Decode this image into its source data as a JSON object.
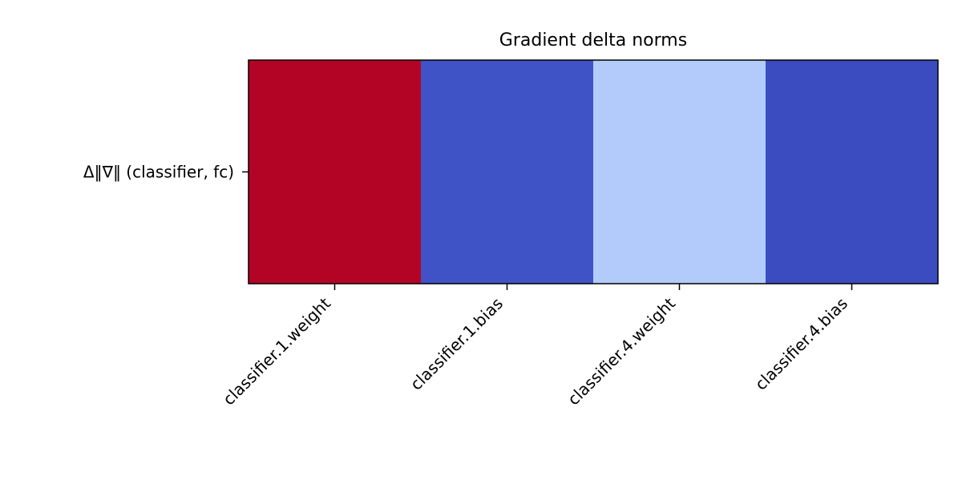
{
  "chart_data": {
    "type": "heatmap",
    "title": "Gradient delta norms",
    "x_categories": [
      "classifier.1.weight",
      "classifier.1.bias",
      "classifier.4.weight",
      "classifier.4.bias"
    ],
    "y_categories": [
      "Δ‖∇‖ (classifier, fc)"
    ],
    "colormap": "coolwarm",
    "values": [
      [
        1.0,
        0.01,
        0.4,
        0.0
      ]
    ],
    "cell_colors": [
      [
        "#b40426",
        "#3f53c6",
        "#b2cbfb",
        "#3b4cc0"
      ]
    ],
    "colorbar": false,
    "grid": false
  }
}
